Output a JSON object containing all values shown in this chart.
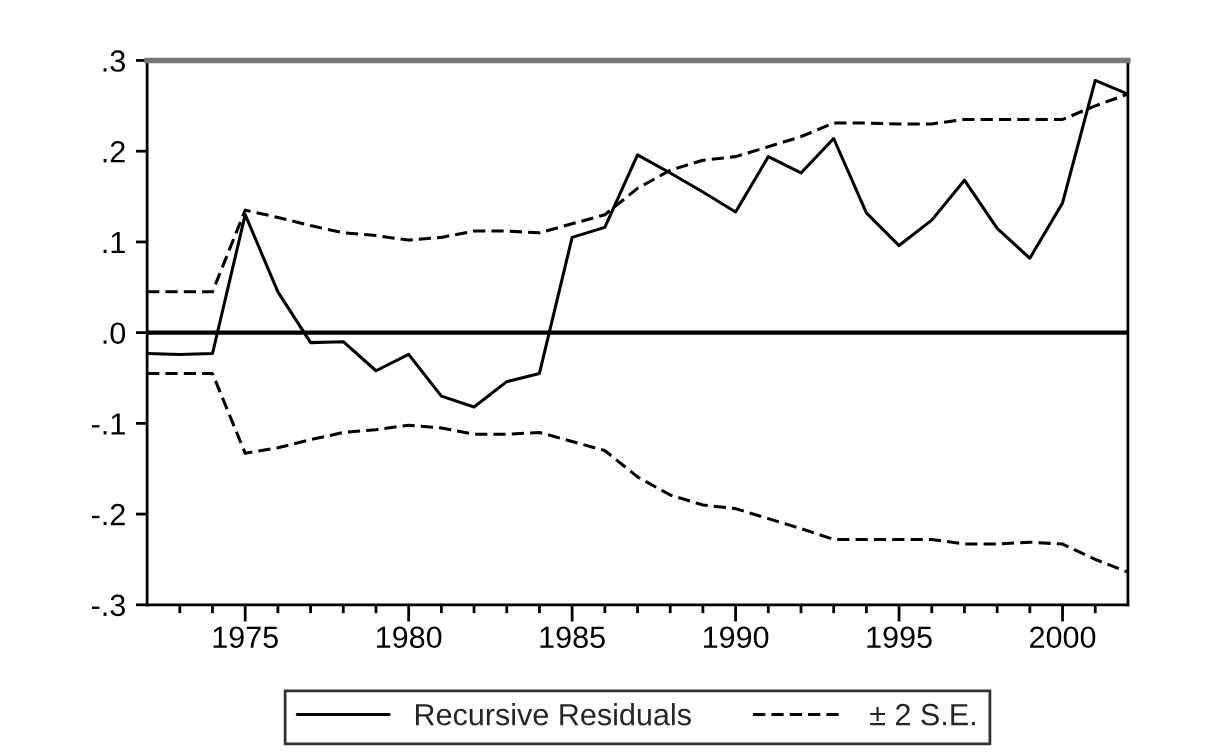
{
  "chart_data": {
    "type": "line",
    "x": [
      1972,
      1973,
      1974,
      1975,
      1976,
      1977,
      1978,
      1979,
      1980,
      1981,
      1982,
      1983,
      1984,
      1985,
      1986,
      1987,
      1988,
      1989,
      1990,
      1991,
      1992,
      1993,
      1994,
      1995,
      1996,
      1997,
      1998,
      1999,
      2000,
      2001,
      2002
    ],
    "series": [
      {
        "name": "Recursive Residuals",
        "color": "#000000",
        "line_style": "solid",
        "values": [
          -0.023,
          -0.024,
          -0.023,
          0.13,
          0.045,
          -0.011,
          -0.01,
          -0.042,
          -0.024,
          -0.07,
          -0.082,
          -0.054,
          -0.045,
          0.105,
          0.116,
          0.196,
          0.176,
          0.155,
          0.133,
          0.194,
          0.176,
          0.214,
          0.132,
          0.096,
          0.124,
          0.168,
          0.115,
          0.082,
          0.143,
          0.278,
          0.263
        ]
      },
      {
        "name": "± 2 S.E.",
        "color": "#000000",
        "line_style": "dashed",
        "values": [
          0.045,
          0.045,
          0.045,
          0.135,
          0.127,
          0.118,
          0.11,
          0.107,
          0.102,
          0.105,
          0.112,
          0.112,
          0.11,
          0.12,
          0.13,
          0.159,
          0.179,
          0.19,
          0.194,
          0.205,
          0.216,
          0.231,
          0.231,
          0.23,
          0.23,
          0.235,
          0.235,
          0.235,
          0.235,
          0.25,
          0.263
        ]
      },
      {
        "color": "#000000",
        "line_style": "dashed",
        "values": [
          -0.045,
          -0.045,
          -0.045,
          -0.133,
          -0.127,
          -0.118,
          -0.11,
          -0.107,
          -0.102,
          -0.105,
          -0.112,
          -0.112,
          -0.11,
          -0.12,
          -0.13,
          -0.159,
          -0.179,
          -0.19,
          -0.194,
          -0.205,
          -0.216,
          -0.228,
          -0.228,
          -0.228,
          -0.228,
          -0.233,
          -0.233,
          -0.231,
          -0.233,
          -0.25,
          -0.264
        ]
      }
    ],
    "xlim": [
      1972,
      2002
    ],
    "xticks": [
      {
        "value": 1973,
        "label": null
      },
      {
        "value": 1974,
        "label": null
      },
      1975,
      {
        "value": 1976,
        "label": null
      },
      {
        "value": 1977,
        "label": null
      },
      {
        "value": 1978,
        "label": null
      },
      {
        "value": 1979,
        "label": null
      },
      1980,
      {
        "value": 1981,
        "label": null
      },
      {
        "value": 1982,
        "label": null
      },
      {
        "value": 1983,
        "label": null
      },
      {
        "value": 1984,
        "label": null
      },
      1985,
      {
        "value": 1986,
        "label": null
      },
      {
        "value": 1987,
        "label": null
      },
      {
        "value": 1988,
        "label": null
      },
      {
        "value": 1989,
        "label": null
      },
      1990,
      {
        "value": 1991,
        "label": null
      },
      {
        "value": 1992,
        "label": null
      },
      {
        "value": 1993,
        "label": null
      },
      {
        "value": 1994,
        "label": null
      },
      1995,
      {
        "value": 1996,
        "label": null
      },
      {
        "value": 1997,
        "label": null
      },
      {
        "value": 1998,
        "label": null
      },
      {
        "value": 1999,
        "label": null
      },
      2000,
      {
        "value": 2001,
        "label": null
      }
    ],
    "ylim": [
      -0.3,
      0.3
    ],
    "yticks": [
      {
        "value": -0.3,
        "label": "-.3"
      },
      {
        "value": -0.2,
        "label": "-.2"
      },
      {
        "value": -0.1,
        "label": "-.1"
      },
      {
        "value": 0,
        "label": ".0"
      },
      {
        "value": 0.1,
        "label": ".1"
      },
      {
        "value": 0.2,
        "label": ".2"
      },
      {
        "value": 0.3,
        "label": ".3"
      }
    ],
    "ref_lines": [
      {
        "axis": "y",
        "value": 0,
        "color": "#000000",
        "line_style": "solid"
      }
    ],
    "grid": false,
    "legend": "bottom"
  }
}
